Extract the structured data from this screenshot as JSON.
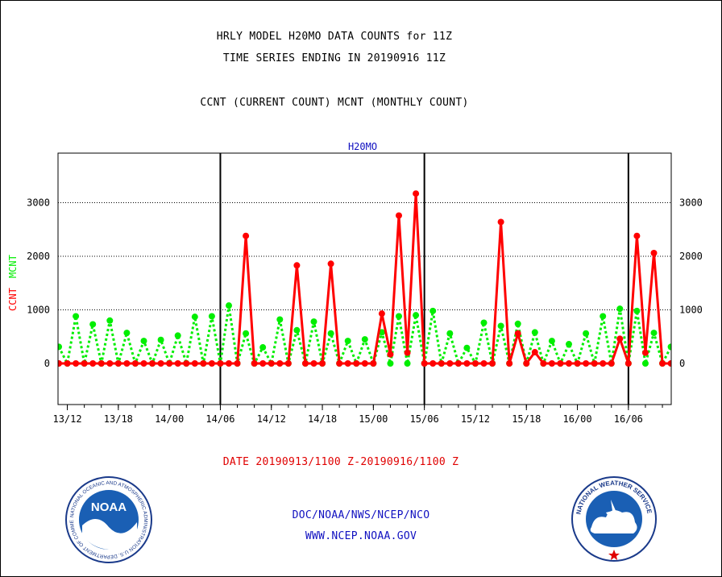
{
  "header": {
    "line1": "HRLY MODEL H20MO DATA COUNTS for 11Z",
    "line2": "TIME SERIES ENDING IN 20190916 11Z",
    "line3": "CCNT (CURRENT COUNT) MCNT (MONTHLY COUNT)"
  },
  "chart_data": {
    "type": "line",
    "title": "H20MO",
    "ylabel_parts": [
      {
        "text": "CCNT",
        "color": "#ff0000"
      },
      {
        "text": "MCNT",
        "color": "#00ee00"
      }
    ],
    "x_tick_labels": [
      "13/12",
      "13/18",
      "14/00",
      "14/06",
      "14/12",
      "14/18",
      "15/00",
      "15/06",
      "15/12",
      "15/18",
      "16/00",
      "16/06"
    ],
    "x_range": [
      0,
      72
    ],
    "y_ticks": [
      0,
      1000,
      2000,
      3000
    ],
    "y_tick_labels": [
      "0",
      "1000",
      "2000",
      "3000"
    ],
    "ylim": [
      -750,
      3900
    ],
    "grid_y": [
      1000,
      2000,
      3000
    ],
    "day_boundaries": [
      19,
      43,
      67
    ],
    "series": [
      {
        "name": "CCNT",
        "color": "#ff0000",
        "values": [
          0,
          0,
          0,
          0,
          0,
          0,
          0,
          0,
          0,
          0,
          0,
          0,
          0,
          0,
          0,
          0,
          0,
          0,
          0,
          0,
          0,
          0,
          2380,
          0,
          0,
          0,
          0,
          0,
          1830,
          0,
          0,
          0,
          1860,
          0,
          0,
          0,
          0,
          0,
          930,
          170,
          2760,
          200,
          3170,
          0,
          0,
          0,
          0,
          0,
          0,
          0,
          0,
          0,
          2640,
          0,
          560,
          0,
          210,
          0,
          0,
          0,
          0,
          0,
          0,
          0,
          0,
          0,
          460,
          0,
          2380,
          200,
          2060,
          0,
          0
        ]
      },
      {
        "name": "MCNT",
        "color": "#00ee00",
        "values": [
          310,
          0,
          880,
          0,
          730,
          0,
          800,
          0,
          570,
          0,
          420,
          0,
          440,
          0,
          520,
          0,
          870,
          0,
          880,
          0,
          1080,
          0,
          560,
          0,
          300,
          0,
          820,
          0,
          620,
          0,
          780,
          0,
          560,
          0,
          420,
          0,
          450,
          0,
          580,
          0,
          880,
          0,
          900,
          0,
          980,
          0,
          560,
          0,
          290,
          0,
          760,
          0,
          700,
          0,
          740,
          0,
          580,
          0,
          420,
          0,
          360,
          0,
          560,
          0,
          880,
          0,
          1020,
          0,
          980,
          0,
          570,
          0,
          310
        ]
      }
    ]
  },
  "date_range": "DATE 20190913/1100 Z-20190916/1100 Z",
  "footer": {
    "line1": "DOC/NOAA/NWS/NCEP/NCO",
    "line2": "WWW.NCEP.NOAA.GOV"
  },
  "logos": {
    "noaa_text": "NOAA",
    "noaa_ring": "NATIONAL OCEANIC AND ATMOSPHERIC ADMINISTRATION U.S. DEPARTMENT OF COMMERCE",
    "nws_ring": "NATIONAL WEATHER SERVICE"
  }
}
